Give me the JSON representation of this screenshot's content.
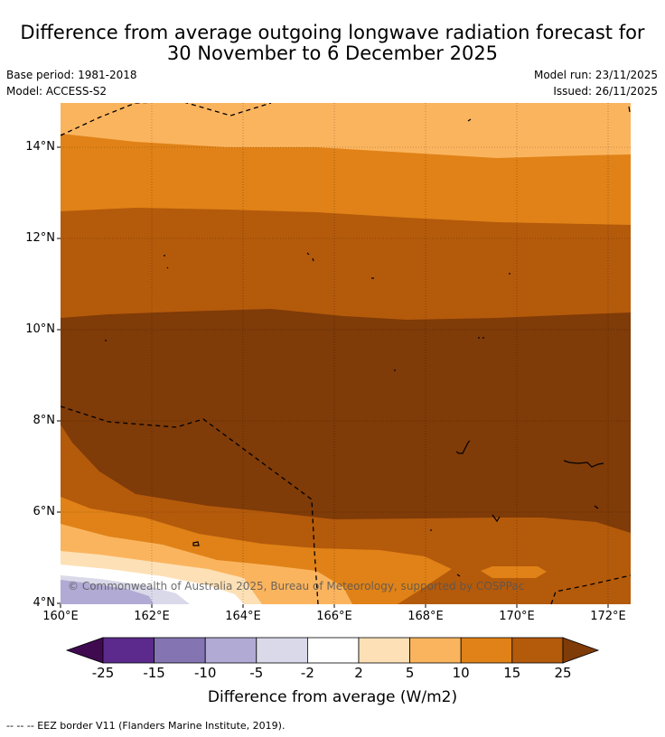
{
  "title_line1": "Difference from average outgoing longwave radiation forecast for",
  "title_line2": "30 November to 6 December 2025",
  "base_period": "Base period: 1981-2018",
  "model": "Model: ACCESS-S2",
  "model_run": "Model run: 23/11/2025",
  "issued": "Issued: 26/11/2025",
  "copyright": "© Commonwealth of Australia 2025, Bureau of Meteorology, supported by COSPPac",
  "lat_ticks": [
    "14°N",
    "12°N",
    "10°N",
    "8°N",
    "6°N",
    "4°N"
  ],
  "lon_ticks": [
    "160°E",
    "162°E",
    "164°E",
    "166°E",
    "168°E",
    "170°E",
    "172°E"
  ],
  "colorbar": {
    "label": "Difference from average (W/m2)",
    "ticks": [
      "-25",
      "-15",
      "-10",
      "-5",
      "-2",
      "2",
      "5",
      "10",
      "15",
      "25"
    ],
    "colors": [
      "#3f0a4f",
      "#5b2a8c",
      "#8474b1",
      "#b1aad4",
      "#d9d9ea",
      "#ffffff",
      "#fde0b5",
      "#fbb45e",
      "#e08217",
      "#b45a0b",
      "#7f3b08"
    ]
  },
  "legend_note": "-- -- -- EEZ border V11 (Flanders Marine Institute, 2019).",
  "icons": [
    "eez-border-line",
    "island-outline"
  ]
}
